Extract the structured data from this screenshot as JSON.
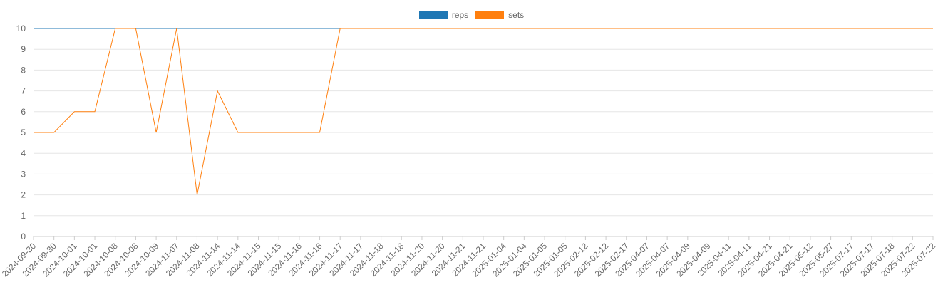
{
  "chart_data": {
    "type": "line",
    "x": [
      "2024-09-30",
      "2024-09-30",
      "2024-10-01",
      "2024-10-01",
      "2024-10-08",
      "2024-10-08",
      "2024-10-09",
      "2024-11-07",
      "2024-11-08",
      "2024-11-14",
      "2024-11-14",
      "2024-11-15",
      "2024-11-15",
      "2024-11-16",
      "2024-11-16",
      "2024-11-17",
      "2024-11-17",
      "2024-11-18",
      "2024-11-18",
      "2024-11-20",
      "2024-11-20",
      "2024-11-21",
      "2024-11-21",
      "2025-01-04",
      "2025-01-04",
      "2025-01-05",
      "2025-01-05",
      "2025-02-12",
      "2025-02-12",
      "2025-02-17",
      "2025-04-07",
      "2025-04-07",
      "2025-04-09",
      "2025-04-09",
      "2025-04-11",
      "2025-04-11",
      "2025-04-21",
      "2025-04-21",
      "2025-05-12",
      "2025-05-27",
      "2025-07-17",
      "2025-07-17",
      "2025-07-18",
      "2025-07-22",
      "2025-07-22"
    ],
    "series": [
      {
        "name": "reps",
        "color": "#1f77b4",
        "values": [
          10,
          10,
          10,
          10,
          10,
          10,
          10,
          10,
          10,
          10,
          10,
          10,
          10,
          10,
          10,
          10,
          10,
          10,
          10,
          10,
          10,
          10,
          10,
          10,
          10,
          10,
          10,
          10,
          10,
          10,
          10,
          10,
          10,
          10,
          10,
          10,
          10,
          10,
          10,
          10,
          10,
          10,
          10,
          10,
          10
        ]
      },
      {
        "name": "sets",
        "color": "#ff7f0e",
        "values": [
          5,
          5,
          6,
          6,
          10,
          10,
          5,
          10,
          2,
          7,
          5,
          5,
          5,
          5,
          5,
          10,
          10,
          10,
          10,
          10,
          10,
          10,
          10,
          10,
          10,
          10,
          10,
          10,
          10,
          10,
          10,
          10,
          10,
          10,
          10,
          10,
          10,
          10,
          10,
          10,
          10,
          10,
          10,
          10,
          10
        ]
      }
    ],
    "yticks": [
      0,
      1,
      2,
      3,
      4,
      5,
      6,
      7,
      8,
      9,
      10
    ],
    "ylim": [
      0,
      10
    ],
    "grid": true,
    "legend": "top-center",
    "title": "",
    "xlabel": "",
    "ylabel": ""
  }
}
